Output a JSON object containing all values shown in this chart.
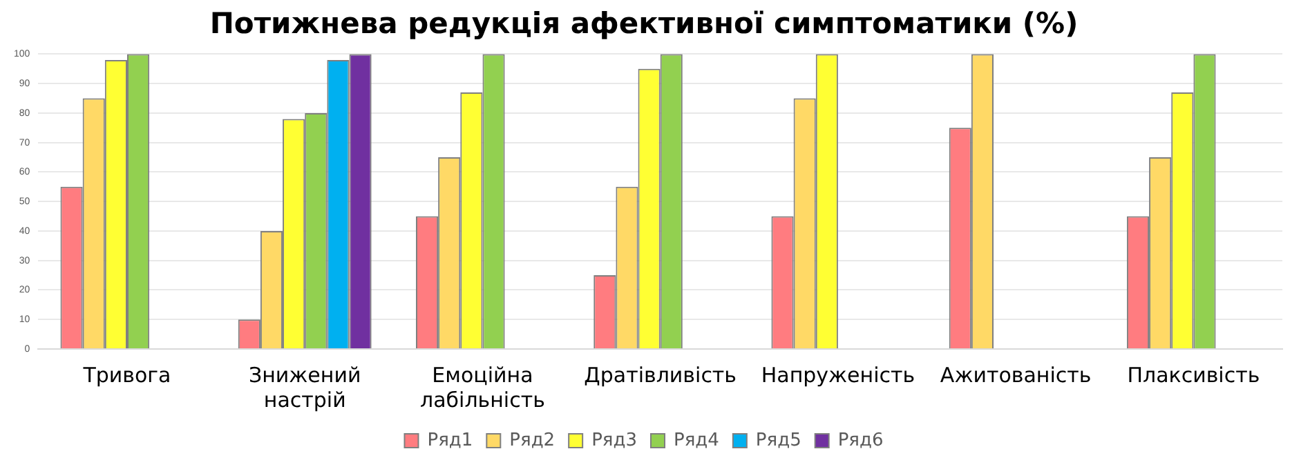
{
  "chart_data": {
    "type": "bar",
    "title": "Потижнева редукція афективної симптоматики (%)",
    "categories": [
      "Тривога",
      "Знижений настрій",
      "Емоційна лабільність",
      "Дратівливість",
      "Напруженість",
      "Ажитованість",
      "Плаксивість"
    ],
    "series": [
      {
        "name": "Ряд1",
        "color": "#ff7c80",
        "values": [
          55,
          10,
          45,
          25,
          45,
          75,
          45
        ]
      },
      {
        "name": "Ряд2",
        "color": "#ffd966",
        "values": [
          85,
          40,
          65,
          55,
          85,
          100,
          65
        ]
      },
      {
        "name": "Ряд3",
        "color": "#ffff33",
        "values": [
          98,
          78,
          87,
          95,
          100,
          null,
          87
        ]
      },
      {
        "name": "Ряд4",
        "color": "#92d050",
        "values": [
          100,
          80,
          100,
          100,
          null,
          null,
          100
        ]
      },
      {
        "name": "Ряд5",
        "color": "#00b0f0",
        "values": [
          null,
          98,
          null,
          null,
          null,
          null,
          null
        ]
      },
      {
        "name": "Ряд6",
        "color": "#7030a0",
        "values": [
          null,
          100,
          null,
          null,
          null,
          null,
          null
        ]
      }
    ],
    "ylim": [
      0,
      100
    ],
    "yticks": [
      0,
      10,
      20,
      30,
      40,
      50,
      60,
      70,
      80,
      90,
      100
    ],
    "grid": "y",
    "legend": "bottom"
  }
}
